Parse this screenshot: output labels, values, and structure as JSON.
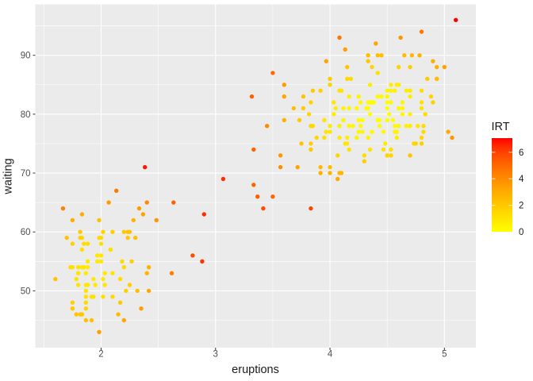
{
  "chart_data": {
    "type": "scatter",
    "title": "",
    "xlabel": "eruptions",
    "ylabel": "waiting",
    "xlim": [
      1.425,
      5.275
    ],
    "ylim": [
      40.35,
      98.65
    ],
    "x_ticks": [
      2,
      3,
      4,
      5
    ],
    "y_ticks": [
      50,
      60,
      70,
      80,
      90
    ],
    "x_minor_ticks": [
      1.5,
      2.5,
      3.5,
      4.5
    ],
    "y_minor_ticks": [
      45,
      55,
      65,
      75,
      85,
      95
    ],
    "grid": true,
    "panel_background": "#EBEBEB",
    "gridline_color": "#FFFFFF",
    "tick_mark_color": "#333333",
    "tick_label_color": "#4D4D4D",
    "axis_title_color": "#1A1A1A",
    "n_points": 272,
    "color_variable": "IRT",
    "color_note": "point colour encodes IRT: yellow (0, dense cluster cores) through orange to red (~7, isolated outliers); IRT rendered as normalized negative log local point density",
    "legend": {
      "title": "IRT",
      "position": "right",
      "ticks": [
        0,
        2,
        4,
        6
      ],
      "max": 7.07,
      "low_color": "#FFFF00",
      "high_color": "#FF0000"
    },
    "points": [
      [
        3.6,
        79
      ],
      [
        1.8,
        54
      ],
      [
        3.333,
        74
      ],
      [
        2.283,
        62
      ],
      [
        4.533,
        85
      ],
      [
        2.883,
        55
      ],
      [
        4.7,
        88
      ],
      [
        3.6,
        85
      ],
      [
        1.95,
        51
      ],
      [
        4.35,
        85
      ],
      [
        1.833,
        54
      ],
      [
        3.917,
        84
      ],
      [
        4.2,
        78
      ],
      [
        1.75,
        47
      ],
      [
        4.7,
        83
      ],
      [
        2.167,
        52
      ],
      [
        1.75,
        62
      ],
      [
        4.8,
        84
      ],
      [
        1.6,
        52
      ],
      [
        4.25,
        79
      ],
      [
        1.8,
        51
      ],
      [
        1.75,
        47
      ],
      [
        3.45,
        78
      ],
      [
        3.067,
        69
      ],
      [
        4.533,
        74
      ],
      [
        3.6,
        83
      ],
      [
        1.967,
        55
      ],
      [
        4.083,
        76
      ],
      [
        3.85,
        78
      ],
      [
        4.433,
        79
      ],
      [
        4.3,
        73
      ],
      [
        4.467,
        77
      ],
      [
        3.367,
        66
      ],
      [
        4.033,
        80
      ],
      [
        3.833,
        74
      ],
      [
        2.017,
        52
      ],
      [
        1.867,
        48
      ],
      [
        4.833,
        80
      ],
      [
        1.833,
        59
      ],
      [
        4.783,
        90
      ],
      [
        4.35,
        80
      ],
      [
        1.883,
        58
      ],
      [
        4.567,
        84
      ],
      [
        1.75,
        58
      ],
      [
        4.533,
        73
      ],
      [
        3.317,
        83
      ],
      [
        3.833,
        64
      ],
      [
        2.1,
        53
      ],
      [
        4.633,
        82
      ],
      [
        2,
        59
      ],
      [
        4.8,
        75
      ],
      [
        4.716,
        90
      ],
      [
        1.833,
        54
      ],
      [
        4.833,
        80
      ],
      [
        1.733,
        54
      ],
      [
        4.883,
        83
      ],
      [
        3.717,
        71
      ],
      [
        1.667,
        64
      ],
      [
        4.567,
        77
      ],
      [
        4.317,
        81
      ],
      [
        2.233,
        59
      ],
      [
        4.5,
        84
      ],
      [
        1.75,
        48
      ],
      [
        4.8,
        82
      ],
      [
        1.817,
        60
      ],
      [
        4.4,
        92
      ],
      [
        4.167,
        78
      ],
      [
        4.7,
        78
      ],
      [
        2.067,
        65
      ],
      [
        4.7,
        73
      ],
      [
        4.033,
        82
      ],
      [
        1.967,
        56
      ],
      [
        4.5,
        79
      ],
      [
        4,
        71
      ],
      [
        1.983,
        62
      ],
      [
        5.067,
        76
      ],
      [
        2.017,
        60
      ],
      [
        4.567,
        78
      ],
      [
        3.883,
        76
      ],
      [
        3.6,
        83
      ],
      [
        4.133,
        75
      ],
      [
        4.333,
        82
      ],
      [
        4.1,
        70
      ],
      [
        2.633,
        65
      ],
      [
        4.067,
        73
      ],
      [
        4.933,
        88
      ],
      [
        3.95,
        76
      ],
      [
        4.517,
        80
      ],
      [
        2.167,
        48
      ],
      [
        4,
        86
      ],
      [
        2.2,
        60
      ],
      [
        4.333,
        90
      ],
      [
        1.867,
        50
      ],
      [
        4.817,
        78
      ],
      [
        1.833,
        63
      ],
      [
        4.3,
        72
      ],
      [
        4.667,
        84
      ],
      [
        3.75,
        75
      ],
      [
        1.867,
        51
      ],
      [
        4.9,
        82
      ],
      [
        2.483,
        62
      ],
      [
        4.367,
        88
      ],
      [
        2.1,
        49
      ],
      [
        4.5,
        83
      ],
      [
        4.05,
        81
      ],
      [
        1.867,
        47
      ],
      [
        4.7,
        84
      ],
      [
        1.783,
        52
      ],
      [
        4.85,
        86
      ],
      [
        3.683,
        81
      ],
      [
        4.733,
        75
      ],
      [
        2.3,
        59
      ],
      [
        4.9,
        89
      ],
      [
        4.417,
        79
      ],
      [
        1.7,
        59
      ],
      [
        4.633,
        81
      ],
      [
        2.317,
        50
      ],
      [
        4.6,
        85
      ],
      [
        1.817,
        59
      ],
      [
        4.417,
        87
      ],
      [
        2.617,
        53
      ],
      [
        4.067,
        69
      ],
      [
        4.25,
        77
      ],
      [
        1.967,
        56
      ],
      [
        4.6,
        88
      ],
      [
        3.767,
        81
      ],
      [
        1.917,
        45
      ],
      [
        4.5,
        82
      ],
      [
        2.267,
        55
      ],
      [
        4.65,
        90
      ],
      [
        1.867,
        45
      ],
      [
        4.167,
        83
      ],
      [
        2.8,
        56
      ],
      [
        4.333,
        89
      ],
      [
        1.833,
        46
      ],
      [
        4.383,
        82
      ],
      [
        1.883,
        51
      ],
      [
        4.933,
        86
      ],
      [
        2.033,
        53
      ],
      [
        3.733,
        79
      ],
      [
        4.233,
        81
      ],
      [
        2.233,
        60
      ],
      [
        4.533,
        82
      ],
      [
        4.817,
        77
      ],
      [
        4.333,
        76
      ],
      [
        1.983,
        59
      ],
      [
        4.633,
        80
      ],
      [
        2.017,
        49
      ],
      [
        5.1,
        96
      ],
      [
        1.8,
        53
      ],
      [
        5.033,
        77
      ],
      [
        4,
        77
      ],
      [
        2.4,
        65
      ],
      [
        4.6,
        81
      ],
      [
        3.567,
        71
      ],
      [
        4,
        70
      ],
      [
        4.5,
        81
      ],
      [
        4.083,
        93
      ],
      [
        1.8,
        53
      ],
      [
        3.967,
        89
      ],
      [
        2.2,
        45
      ],
      [
        4.15,
        86
      ],
      [
        2,
        58
      ],
      [
        3.833,
        78
      ],
      [
        3.5,
        66
      ],
      [
        4.583,
        76
      ],
      [
        2.367,
        63
      ],
      [
        5,
        88
      ],
      [
        1.933,
        52
      ],
      [
        4.617,
        93
      ],
      [
        1.917,
        49
      ],
      [
        2.083,
        57
      ],
      [
        4.583,
        77
      ],
      [
        3.333,
        68
      ],
      [
        4.167,
        81
      ],
      [
        4.333,
        81
      ],
      [
        4.5,
        73
      ],
      [
        2.417,
        50
      ],
      [
        4,
        85
      ],
      [
        4.167,
        74
      ],
      [
        1.883,
        55
      ],
      [
        4.583,
        77
      ],
      [
        4.25,
        83
      ],
      [
        3.767,
        83
      ],
      [
        2.033,
        51
      ],
      [
        4.433,
        78
      ],
      [
        4.083,
        84
      ],
      [
        1.833,
        46
      ],
      [
        4.417,
        83
      ],
      [
        2.183,
        55
      ],
      [
        4.8,
        81
      ],
      [
        1.833,
        57
      ],
      [
        4.8,
        76
      ],
      [
        4.1,
        84
      ],
      [
        3.966,
        77
      ],
      [
        4.233,
        81
      ],
      [
        3.5,
        87
      ],
      [
        4.366,
        77
      ],
      [
        2.25,
        51
      ],
      [
        4.667,
        78
      ],
      [
        2.1,
        60
      ],
      [
        4.35,
        82
      ],
      [
        4.133,
        91
      ],
      [
        1.867,
        53
      ],
      [
        4.6,
        78
      ],
      [
        1.783,
        46
      ],
      [
        4.367,
        77
      ],
      [
        3.85,
        84
      ],
      [
        1.933,
        49
      ],
      [
        4.5,
        83
      ],
      [
        2.383,
        71
      ],
      [
        4.7,
        80
      ],
      [
        1.867,
        49
      ],
      [
        3.833,
        75
      ],
      [
        3.417,
        64
      ],
      [
        4.233,
        76
      ],
      [
        2.4,
        53
      ],
      [
        4.8,
        94
      ],
      [
        2,
        55
      ],
      [
        4.15,
        76
      ],
      [
        1.867,
        50
      ],
      [
        4.267,
        82
      ],
      [
        1.75,
        54
      ],
      [
        4.483,
        75
      ],
      [
        4,
        78
      ],
      [
        4.117,
        79
      ],
      [
        4.083,
        78
      ],
      [
        4.267,
        78
      ],
      [
        3.917,
        70
      ],
      [
        4.55,
        79
      ],
      [
        4.083,
        70
      ],
      [
        2.417,
        54
      ],
      [
        4.183,
        86
      ],
      [
        2.217,
        50
      ],
      [
        4.45,
        90
      ],
      [
        1.883,
        54
      ],
      [
        1.85,
        54
      ],
      [
        4.283,
        77
      ],
      [
        3.95,
        79
      ],
      [
        2.333,
        64
      ],
      [
        4.15,
        75
      ],
      [
        2.35,
        47
      ],
      [
        4.933,
        86
      ],
      [
        2.9,
        63
      ],
      [
        4.583,
        85
      ],
      [
        3.833,
        82
      ],
      [
        2.083,
        57
      ],
      [
        4.367,
        82
      ],
      [
        2.133,
        67
      ],
      [
        4.35,
        74
      ],
      [
        2.2,
        54
      ],
      [
        4.45,
        83
      ],
      [
        3.567,
        73
      ],
      [
        4.5,
        73
      ],
      [
        4.15,
        88
      ],
      [
        3.817,
        80
      ],
      [
        3.917,
        71
      ],
      [
        4.45,
        83
      ],
      [
        2,
        56
      ],
      [
        4.283,
        79
      ],
      [
        4.767,
        78
      ],
      [
        4.533,
        84
      ],
      [
        1.85,
        58
      ],
      [
        4.25,
        83
      ],
      [
        1.983,
        43
      ],
      [
        2.25,
        60
      ],
      [
        4.75,
        75
      ],
      [
        4.117,
        81
      ],
      [
        2.15,
        46
      ],
      [
        4.417,
        90
      ],
      [
        1.817,
        46
      ],
      [
        4.467,
        74
      ]
    ]
  }
}
